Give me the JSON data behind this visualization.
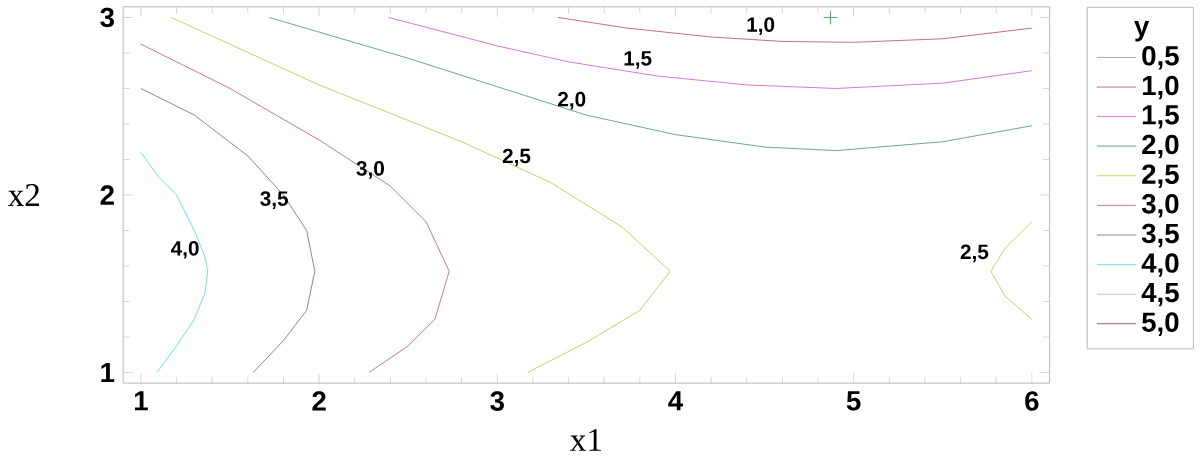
{
  "chart_data": {
    "type": "line",
    "xlabel": "x1",
    "ylabel": "x2",
    "legend_title": "y",
    "legend": "right",
    "xlim": [
      0.9,
      6.1
    ],
    "ylim": [
      0.94,
      3.06
    ],
    "xticks": [
      1,
      2,
      3,
      4,
      5,
      6
    ],
    "yticks": [
      1,
      2,
      3
    ],
    "series": [
      {
        "name": "0,5",
        "color": "#a8a0c8"
      },
      {
        "name": "1,0",
        "color": "#c06080",
        "x": [
          3.34,
          3.73,
          4.2,
          4.6,
          5.0,
          5.5,
          6.0
        ],
        "values": [
          3.0,
          2.94,
          2.89,
          2.865,
          2.86,
          2.88,
          2.94
        ]
      },
      {
        "name": "1,5",
        "color": "#d070d0",
        "x": [
          2.39,
          3.0,
          3.4,
          3.9,
          4.4,
          4.9,
          5.5,
          6.0
        ],
        "values": [
          3.0,
          2.84,
          2.75,
          2.67,
          2.62,
          2.6,
          2.63,
          2.7
        ]
      },
      {
        "name": "2,0",
        "color": "#60a080",
        "x": [
          1.72,
          2.5,
          3.0,
          3.5,
          4.0,
          4.5,
          4.9,
          5.5,
          6.0
        ],
        "values": [
          3.0,
          2.77,
          2.61,
          2.45,
          2.34,
          2.27,
          2.25,
          2.3,
          2.39
        ]
      },
      {
        "name": "2,5",
        "color": "#c8c860",
        "x": [
          1.17,
          2.0,
          2.8,
          3.3,
          3.7,
          3.97,
          3.8,
          3.5,
          3.17
        ],
        "values": [
          3.0,
          2.62,
          2.3,
          2.07,
          1.82,
          1.57,
          1.35,
          1.17,
          1.0
        ]
      },
      {
        "color": "#c8c860",
        "x": [
          6.0,
          5.85,
          5.77,
          5.85,
          6.0
        ],
        "values": [
          1.85,
          1.7,
          1.57,
          1.43,
          1.3
        ]
      },
      {
        "name": "3,0",
        "color": "#c07080",
        "x": [
          1.0,
          1.5,
          2.0,
          2.4,
          2.6,
          2.73,
          2.65,
          2.5,
          2.28
        ],
        "values": [
          2.85,
          2.6,
          2.31,
          2.05,
          1.85,
          1.57,
          1.3,
          1.15,
          1.0
        ]
      },
      {
        "name": "3,5",
        "color": "#9070a0",
        "x": [
          1.0,
          1.3,
          1.6,
          1.8,
          1.93,
          1.976,
          1.93,
          1.8,
          1.63
        ],
        "values": [
          2.6,
          2.45,
          2.22,
          2.0,
          1.8,
          1.57,
          1.35,
          1.18,
          1.0
        ]
      },
      {
        "name": "4,0",
        "color": "#60e0e0",
        "x": [
          1.0,
          1.1,
          1.2,
          1.3,
          1.36,
          1.375,
          1.36,
          1.3,
          1.2,
          1.09
        ],
        "values": [
          2.24,
          2.1,
          2.0,
          1.8,
          1.65,
          1.57,
          1.45,
          1.3,
          1.15,
          1.0
        ]
      },
      {
        "name": "4,5",
        "color": "#c0c0c0"
      },
      {
        "name": "5,0",
        "color": "#806070"
      },
      {
        "type": "scatter",
        "marker": "cross",
        "color": "#40a060",
        "x": [
          4.87
        ],
        "values": [
          3.0
        ]
      }
    ],
    "annotations": [
      {
        "text": "1,0",
        "x": 4.6,
        "y": 2.86
      },
      {
        "text": "1,5",
        "x": 3.91,
        "y": 2.67
      },
      {
        "text": "2,0",
        "x": 3.54,
        "y": 2.44
      },
      {
        "text": "2,5",
        "x": 3.23,
        "y": 2.12
      },
      {
        "text": "3,0",
        "x": 2.41,
        "y": 2.05
      },
      {
        "text": "3,5",
        "x": 1.87,
        "y": 1.88
      },
      {
        "text": "4,0",
        "x": 1.37,
        "y": 1.6
      },
      {
        "text": "2,5",
        "x": 5.8,
        "y": 1.58
      }
    ]
  }
}
